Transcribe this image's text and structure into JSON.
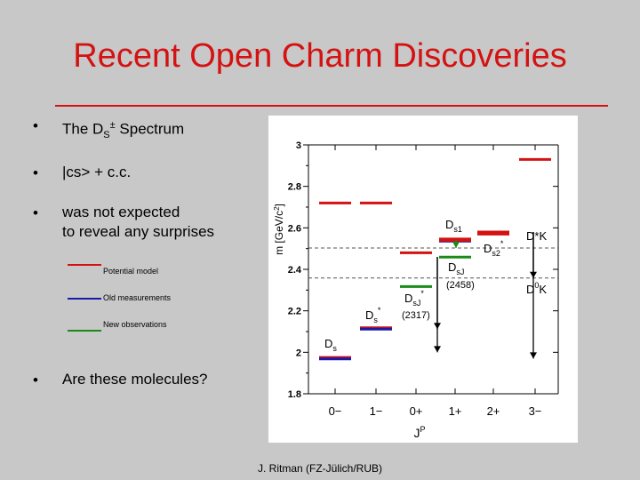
{
  "title": "Recent Open Charm Discoveries",
  "bullets": {
    "b1_prefix": "The D",
    "b1_sub": "S",
    "b1_sup": "±",
    "b1_suffix": " Spectrum",
    "b2": "|cs> + c.c.",
    "b3_line1": "was not expected",
    "b3_line2": "to reveal any surprises",
    "b4": "Are these molecules?"
  },
  "legend": {
    "items": [
      {
        "label": "Potential model",
        "color": "#d41212"
      },
      {
        "label": "Old measurements",
        "color": "#1a1aa8"
      },
      {
        "label": "New observations",
        "color": "#1a8a1a"
      }
    ]
  },
  "chart_data": {
    "type": "diagram",
    "ylabel_prefix": "m [GeV/c",
    "ylabel_sup": "2",
    "ylabel_suffix": "]",
    "xlabel_main": "J",
    "xlabel_sup": "P",
    "ylim": [
      1.8,
      3.0
    ],
    "y_ticks": [
      "1.8",
      "2",
      "2.2",
      "2.4",
      "2.6",
      "2.8",
      "3"
    ],
    "y_tick_values": [
      1.8,
      2.0,
      2.2,
      2.4,
      2.6,
      2.8,
      3.0
    ],
    "x_categories": [
      "0−",
      "1−",
      "0+",
      "1+",
      "2+",
      "3−"
    ],
    "levels": [
      {
        "jp": "0−",
        "mass": 1.975,
        "kind": "potential"
      },
      {
        "jp": "0−",
        "mass": 1.968,
        "kind": "old"
      },
      {
        "jp": "1−",
        "mass": 2.118,
        "kind": "potential"
      },
      {
        "jp": "1−",
        "mass": 2.112,
        "kind": "old"
      },
      {
        "jp": "0−",
        "mass": 2.72,
        "kind": "potential"
      },
      {
        "jp": "1−",
        "mass": 2.72,
        "kind": "potential"
      },
      {
        "jp": "0+",
        "mass": 2.317,
        "kind": "new"
      },
      {
        "jp": "0+",
        "mass": 2.48,
        "kind": "potential"
      },
      {
        "jp": "1+",
        "mass": 2.459,
        "kind": "new"
      },
      {
        "jp": "1+",
        "mass": 2.536,
        "kind": "old"
      },
      {
        "jp": "1+",
        "mass": 2.546,
        "kind": "potential"
      },
      {
        "jp": "1+",
        "mass": 2.54,
        "kind": "potential"
      },
      {
        "jp": "2+",
        "mass": 2.573,
        "kind": "old"
      },
      {
        "jp": "2+",
        "mass": 2.58,
        "kind": "potential"
      },
      {
        "jp": "2+",
        "mass": 2.57,
        "kind": "potential"
      },
      {
        "jp": "3−",
        "mass": 2.93,
        "kind": "potential"
      }
    ],
    "thresholds": [
      {
        "label": "D*K",
        "mass": 2.503
      },
      {
        "label": "D",
        "label_sup": "0",
        "label_suffix": "K",
        "mass": 2.358
      }
    ],
    "labels": {
      "ds": "D",
      "ds_sub": "s",
      "dsstar": "D",
      "dsstar_sub": "s",
      "dsstar_sup": "*",
      "dsj_2317": "D",
      "dsj_2317_sub": "sJ",
      "dsj_2317_sup": "*",
      "dsj_2317_mass": "(2317)",
      "dsj_2458": "D",
      "dsj_2458_sub": "sJ",
      "dsj_2458_mass": "(2458)",
      "ds1": "D",
      "ds1_sub": "s1",
      "ds2": "D",
      "ds2_sub": "s2",
      "ds2_sup": "*"
    }
  },
  "footer": "J. Ritman  (FZ-Jülich/RUB)",
  "colors": {
    "potential": "#d41212",
    "old": "#1a1aa8",
    "new": "#1a8a1a",
    "title": "#d41212",
    "plot_bg": "#ffffff",
    "page_bg": "#c8c8c8"
  }
}
